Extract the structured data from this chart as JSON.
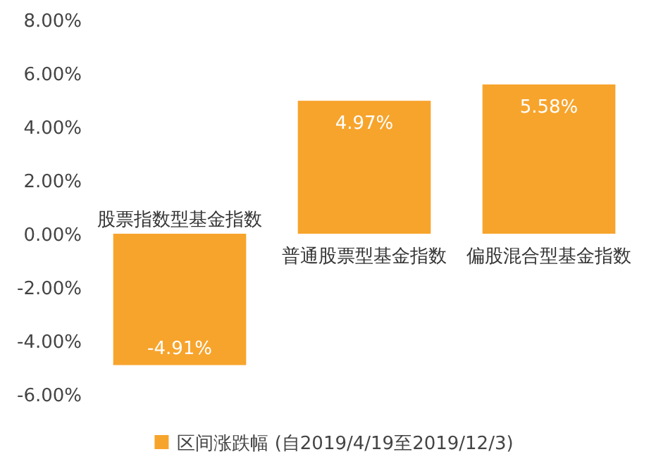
{
  "chart_data": {
    "type": "bar",
    "categories": [
      "股票指数型基金指数",
      "普通股票型基金指数",
      "偏股混合型基金指数"
    ],
    "series": [
      {
        "name": "区间涨跌幅 (自2019/4/19至2019/12/3)",
        "color": "#f7a42c",
        "values": [
          -4.91,
          4.97,
          5.58
        ],
        "value_labels": [
          "-4.91%",
          "4.97%",
          "5.58%"
        ]
      }
    ],
    "ylim": [
      -6,
      8
    ],
    "yticks": [
      {
        "value": 8,
        "label": "8.00%"
      },
      {
        "value": 6,
        "label": "6.00%"
      },
      {
        "value": 4,
        "label": "4.00%"
      },
      {
        "value": 2,
        "label": "2.00%"
      },
      {
        "value": 0,
        "label": "0.00%"
      },
      {
        "value": -2,
        "label": "-2.00%"
      },
      {
        "value": -4,
        "label": "-4.00%"
      },
      {
        "value": -6,
        "label": "-6.00%"
      }
    ],
    "grid": false,
    "legend": "bottom"
  }
}
